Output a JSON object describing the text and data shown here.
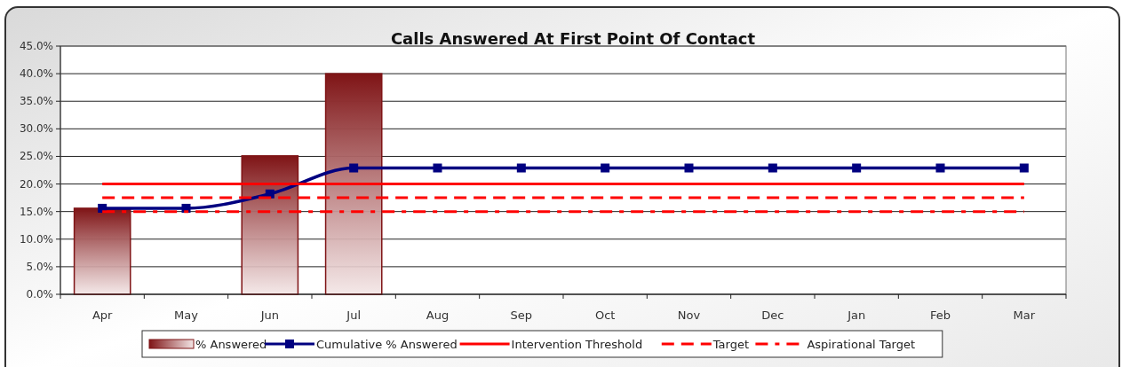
{
  "chart_data": {
    "type": "bar",
    "title": "Calls Answered At First Point Of Contact",
    "categories": [
      "Apr",
      "May",
      "Jun",
      "Jul",
      "Aug",
      "Sep",
      "Oct",
      "Nov",
      "Dec",
      "Jan",
      "Feb",
      "Mar"
    ],
    "series": [
      {
        "name": "% Answered",
        "color": "#7f1416",
        "values": [
          15.6,
          null,
          25.1,
          40.0,
          null,
          null,
          null,
          null,
          null,
          null,
          null,
          null
        ]
      },
      {
        "name": "Cumulative % Answered",
        "type": "line",
        "color": "#000080",
        "marker": "square",
        "line_style": "solid",
        "values": [
          15.6,
          15.6,
          18.2,
          22.9,
          22.9,
          22.9,
          22.9,
          22.9,
          22.9,
          22.9,
          22.9,
          22.9
        ]
      },
      {
        "name": "Intervention Threshold",
        "type": "line",
        "color": "#ff0000",
        "marker": "none",
        "line_style": "solid",
        "values": [
          20,
          20,
          20,
          20,
          20,
          20,
          20,
          20,
          20,
          20,
          20,
          20
        ]
      },
      {
        "name": "Target",
        "type": "line",
        "color": "#ff0000",
        "marker": "none",
        "line_style": "dashed",
        "values": [
          17.5,
          17.5,
          17.5,
          17.5,
          17.5,
          17.5,
          17.5,
          17.5,
          17.5,
          17.5,
          17.5,
          17.5
        ]
      },
      {
        "name": "Aspirational Target",
        "type": "line",
        "color": "#ff0000",
        "marker": "none",
        "line_style": "dashdot",
        "values": [
          15,
          15,
          15,
          15,
          15,
          15,
          15,
          15,
          15,
          15,
          15,
          15
        ]
      }
    ],
    "ylim": [
      0,
      45
    ],
    "yticks": [
      {
        "value": 0,
        "label": "0.0%"
      },
      {
        "value": 5,
        "label": "5.0%"
      },
      {
        "value": 10,
        "label": "10.0%"
      },
      {
        "value": 15,
        "label": "15.0%"
      },
      {
        "value": 20,
        "label": "20.0%"
      },
      {
        "value": 25,
        "label": "25.0%"
      },
      {
        "value": 30,
        "label": "30.0%"
      },
      {
        "value": 35,
        "label": "35.0%"
      },
      {
        "value": 40,
        "label": "40.0%"
      },
      {
        "value": 45,
        "label": "45.0%"
      }
    ],
    "grid": "y",
    "legend": "bottom"
  }
}
